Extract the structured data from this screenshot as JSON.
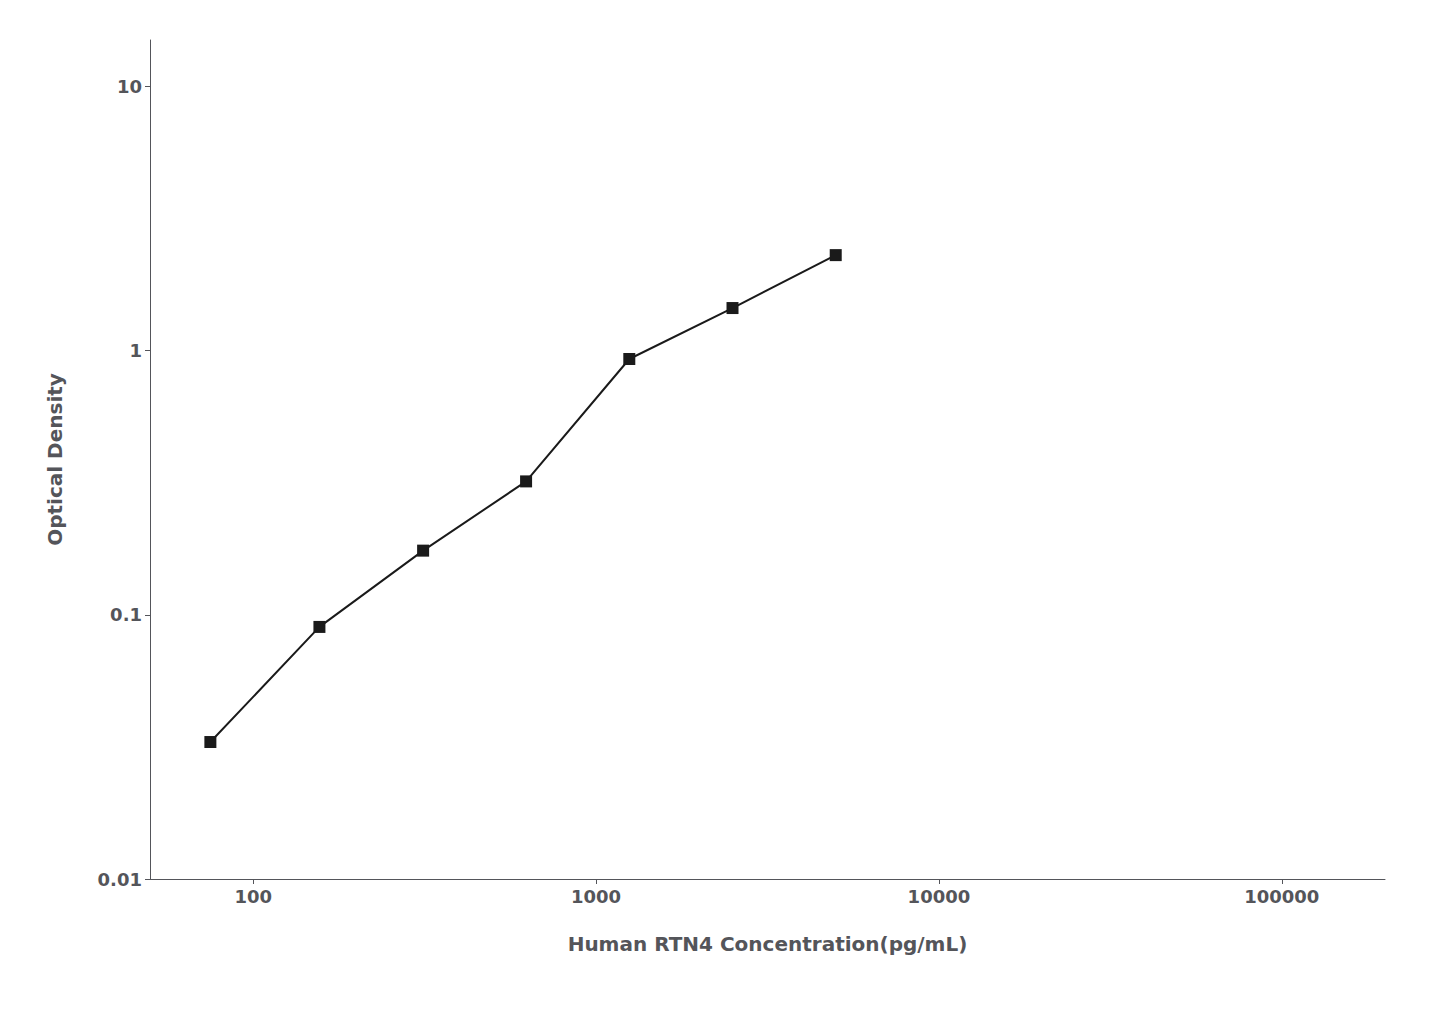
{
  "chart_data": {
    "type": "line",
    "x": [
      75,
      156,
      313,
      625,
      1250,
      2500,
      5000
    ],
    "values": [
      0.033,
      0.09,
      0.175,
      0.32,
      0.93,
      1.45,
      2.3
    ],
    "xlabel": "Human RTN4 Concentration(pg/mL)",
    "ylabel": "Optical Density",
    "xlim": [
      50,
      200000
    ],
    "ylim": [
      0.01,
      15
    ],
    "xticks": [
      100,
      1000,
      10000,
      100000
    ],
    "yticks": [
      0.01,
      0.1,
      1,
      10
    ],
    "log": true,
    "grid": false,
    "color": "#1a1a1a",
    "marker": "square"
  }
}
